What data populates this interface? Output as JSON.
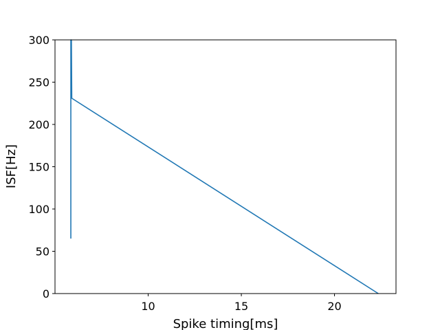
{
  "chart_data": {
    "type": "line",
    "title": "",
    "xlabel": "Spike timing[ms]",
    "ylabel": "ISF[Hz]",
    "xlim": [
      5.0,
      23.3
    ],
    "ylim": [
      0,
      300
    ],
    "x_ticks": [
      10,
      15,
      20
    ],
    "y_ticks": [
      0,
      50,
      100,
      150,
      200,
      250,
      300
    ],
    "grid": false,
    "legend": "none",
    "series": [
      {
        "color": "#1f77b4",
        "points": [
          {
            "x": 5.85,
            "y": 65
          },
          {
            "x": 5.85,
            "y": 300
          },
          {
            "x": 5.88,
            "y": 300
          },
          {
            "x": 5.9,
            "y": 231
          },
          {
            "x": 22.35,
            "y": 0
          }
        ]
      }
    ]
  }
}
